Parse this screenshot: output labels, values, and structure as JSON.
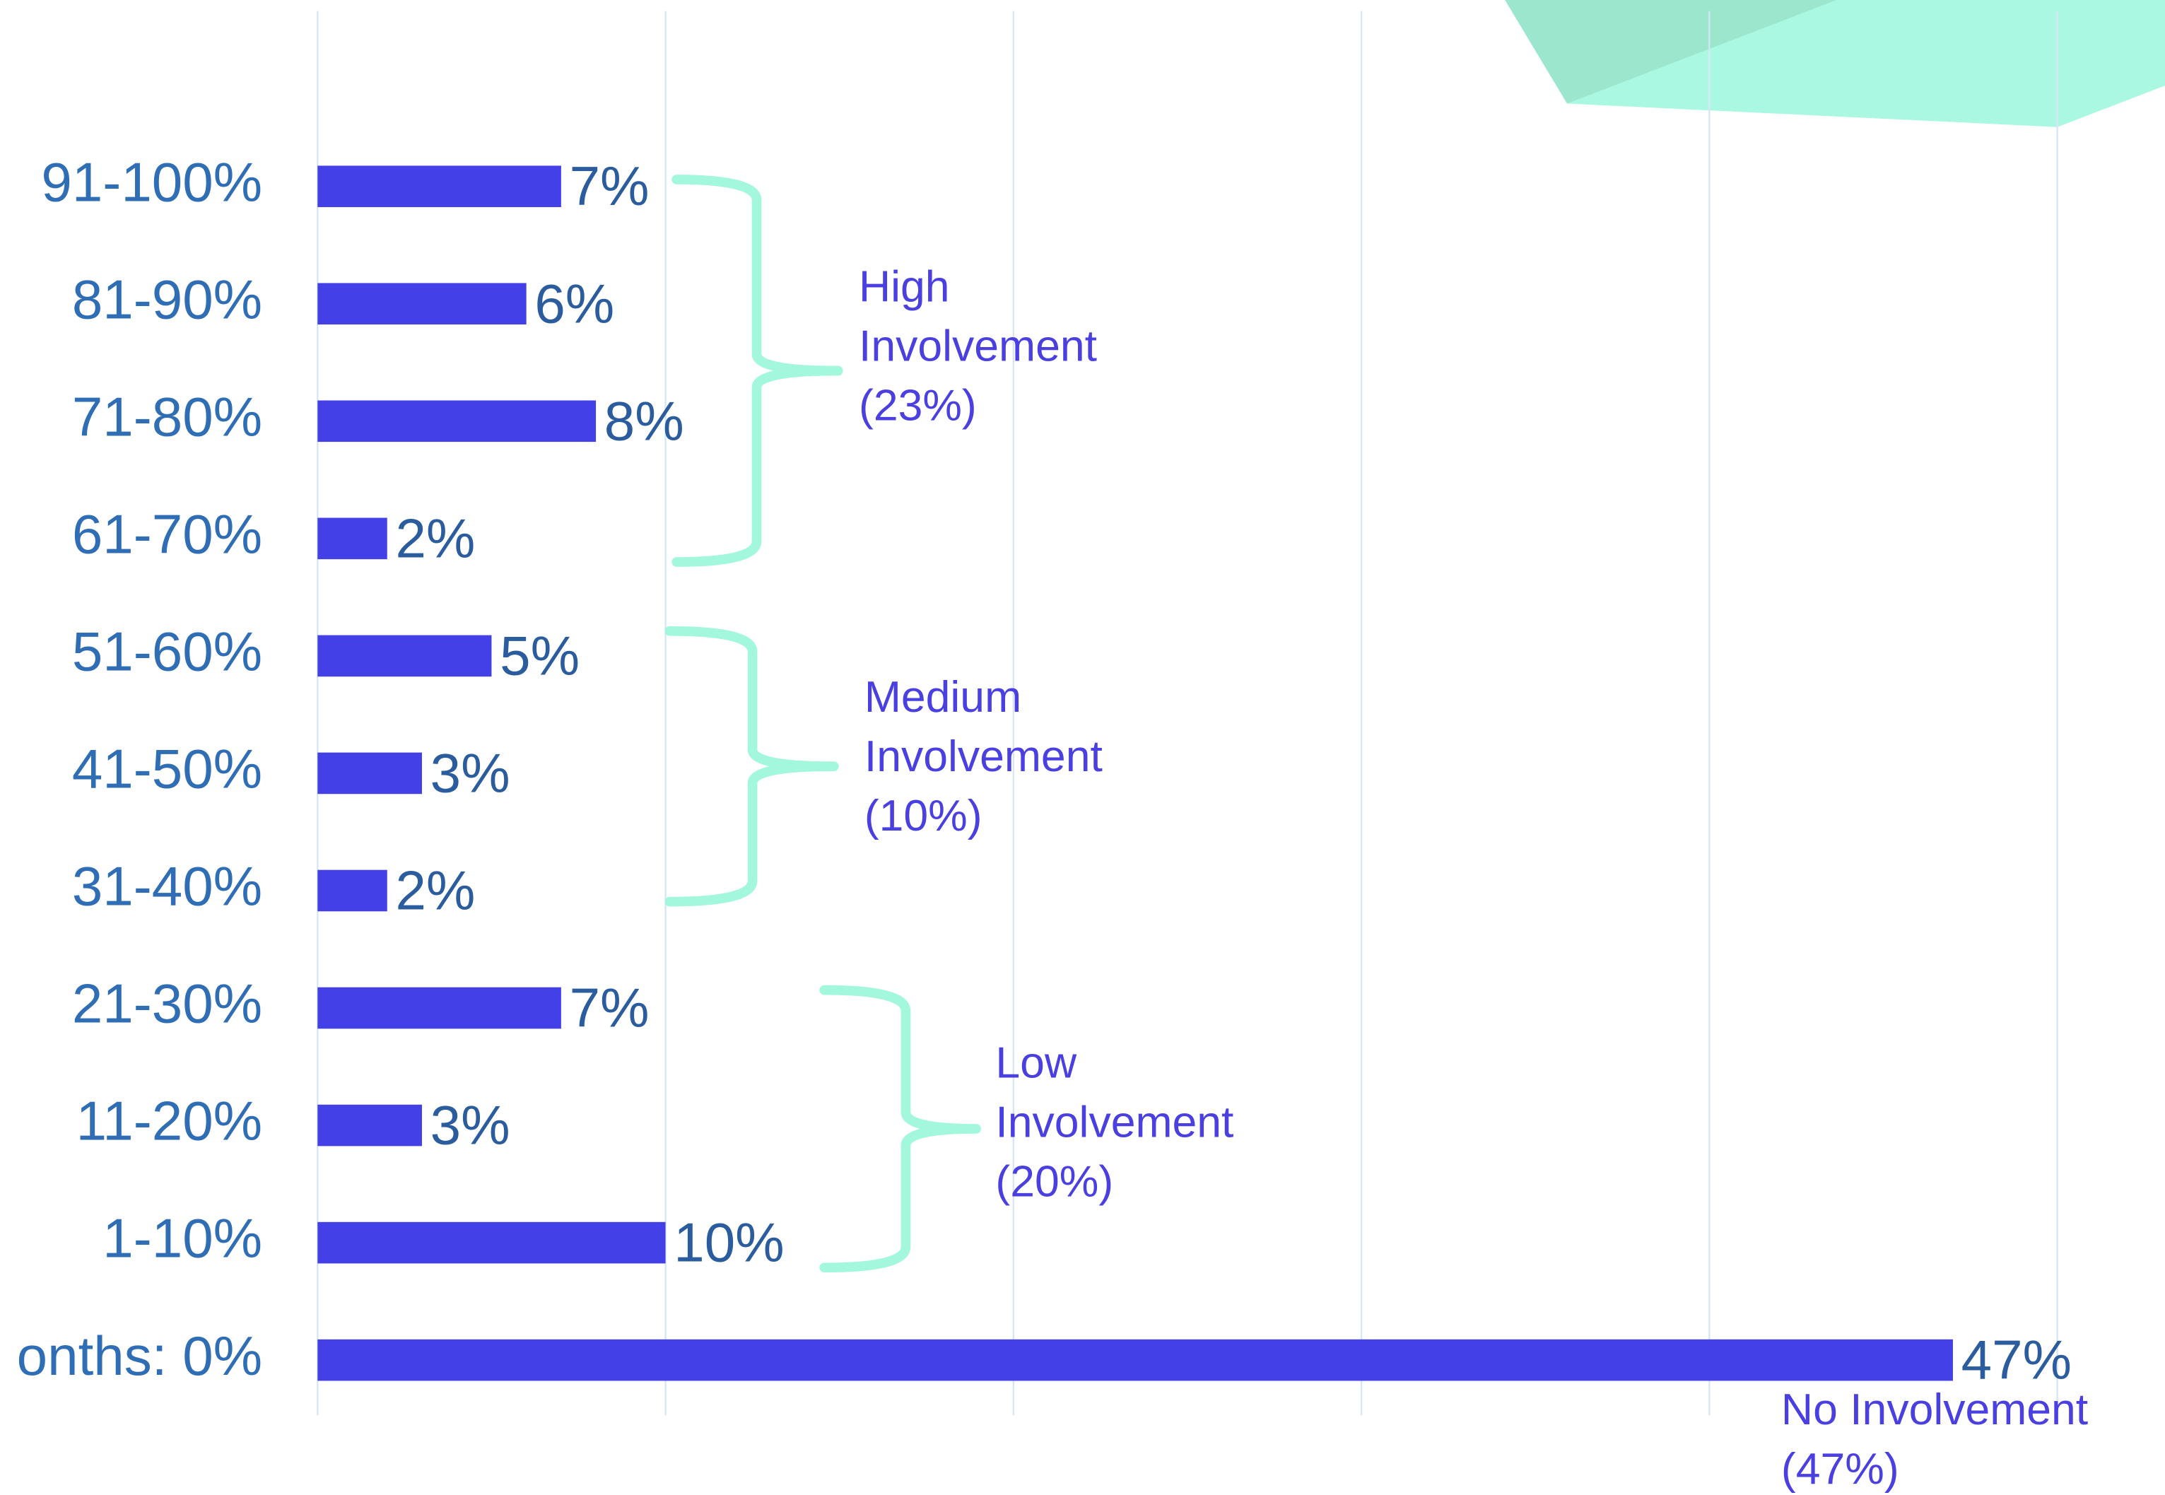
{
  "chart_data": {
    "type": "bar",
    "orientation": "horizontal",
    "categories": [
      "91-100%",
      "81-90%",
      "71-80%",
      "61-70%",
      "51-60%",
      "41-50%",
      "31-40%",
      "21-30%",
      "11-20%",
      "1-10%",
      "onths: 0%"
    ],
    "values": [
      7,
      6,
      8,
      2,
      5,
      3,
      2,
      7,
      3,
      10,
      47
    ],
    "value_labels": [
      "7%",
      "6%",
      "8%",
      "2%",
      "5%",
      "3%",
      "2%",
      "7%",
      "3%",
      "10%",
      "47%"
    ],
    "color": "#4340e8",
    "xlim": [
      0,
      50
    ],
    "xticks": [
      0,
      10,
      20,
      30,
      40,
      50
    ],
    "grid": true,
    "annotations": [
      [
        "High",
        "Involvement",
        "(23%)"
      ],
      [
        "Medium",
        "Involvement",
        "(10%)"
      ],
      [
        "Low",
        "Involvement",
        "(20%)"
      ],
      [
        "No Involvement",
        "(47%)"
      ]
    ]
  }
}
